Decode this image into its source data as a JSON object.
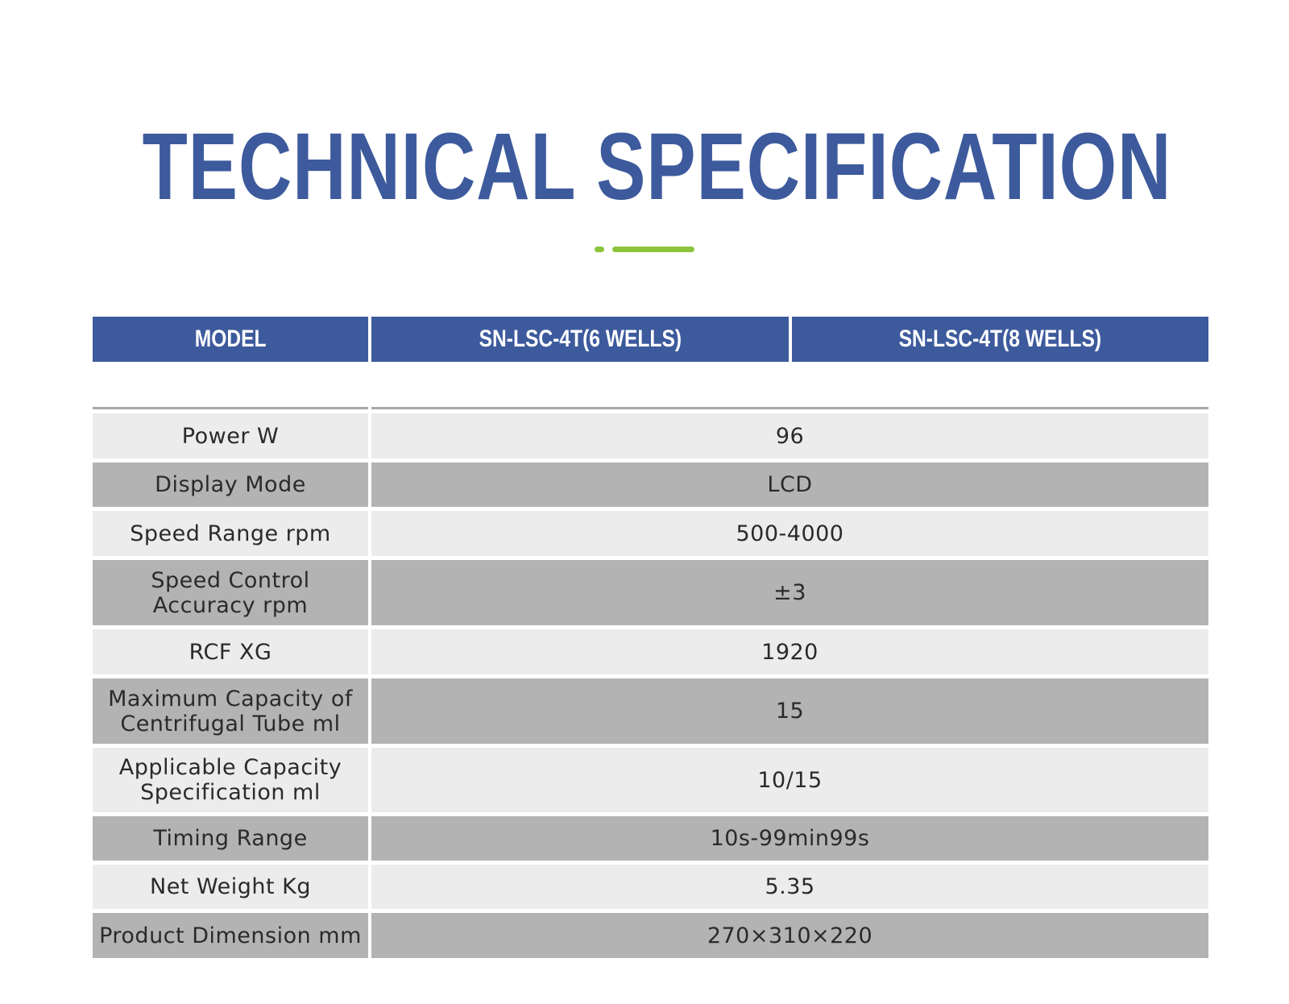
{
  "title": "TECHNICAL SPECIFICATION",
  "colors": {
    "title": "#3d5a9c",
    "header_bg": "#3d5a9c",
    "accent": "#8cc43c",
    "row_light": "#ececec",
    "row_dark": "#b3b3b3"
  },
  "table": {
    "headers": [
      "MODEL",
      "SN-LSC-4T(6 WELLS)",
      "SN-LSC-4T(8 WELLS)"
    ],
    "rows": [
      {
        "label": "Power W",
        "value": "96"
      },
      {
        "label": "Display Mode",
        "value": "LCD"
      },
      {
        "label": "Speed Range rpm",
        "value": "500-4000"
      },
      {
        "label": "Speed Control\nAccuracy rpm",
        "value": "±3"
      },
      {
        "label": "RCF XG",
        "value": "1920"
      },
      {
        "label": "Maximum Capacity of\nCentrifugal Tube ml",
        "value": "15"
      },
      {
        "label": "Applicable Capacity\nSpecification ml",
        "value": "10/15"
      },
      {
        "label": "Timing Range",
        "value": "10s-99min99s"
      },
      {
        "label": "Net Weight Kg",
        "value": "5.35"
      },
      {
        "label": "Product Dimension mm",
        "value": "270×310×220"
      }
    ]
  }
}
